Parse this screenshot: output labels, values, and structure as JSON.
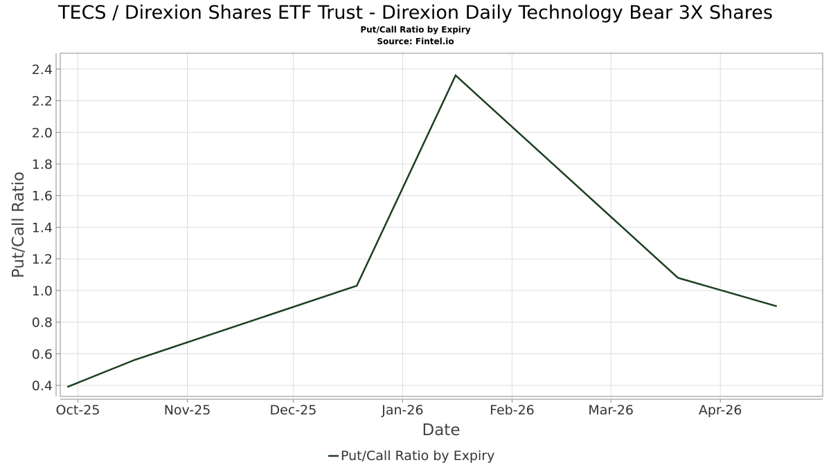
{
  "chart_data": {
    "type": "line",
    "title": "TECS / Direxion Shares ETF Trust - Direxion Daily Technology Bear 3X Shares",
    "subtitle": "Put/Call Ratio by Expiry",
    "source": "Source: Fintel.io",
    "xlabel": "Date",
    "ylabel": "Put/Call Ratio",
    "ylim": [
      0.33,
      2.5
    ],
    "xlim": [
      "2025-09-26",
      "2026-04-30"
    ],
    "yticks": [
      "0.4",
      "0.6",
      "0.8",
      "1.0",
      "1.2",
      "1.4",
      "1.6",
      "1.8",
      "2.0",
      "2.2",
      "2.4"
    ],
    "xticks": [
      {
        "label": "Oct-25",
        "date": "2025-10-01"
      },
      {
        "label": "Nov-25",
        "date": "2025-11-01"
      },
      {
        "label": "Dec-25",
        "date": "2025-12-01"
      },
      {
        "label": "Jan-26",
        "date": "2026-01-01"
      },
      {
        "label": "Feb-26",
        "date": "2026-02-01"
      },
      {
        "label": "Mar-26",
        "date": "2026-03-01"
      },
      {
        "label": "Apr-26",
        "date": "2026-04-01"
      }
    ],
    "grid": true,
    "legend_position": "bottom-center",
    "series": [
      {
        "name": "Put/Call Ratio by Expiry",
        "color": "#1a3d1f",
        "points": [
          {
            "x": "2025-09-28",
            "y": 0.39
          },
          {
            "x": "2025-10-17",
            "y": 0.56
          },
          {
            "x": "2025-12-19",
            "y": 1.03
          },
          {
            "x": "2026-01-16",
            "y": 2.36
          },
          {
            "x": "2026-03-20",
            "y": 1.08
          },
          {
            "x": "2026-04-17",
            "y": 0.9
          }
        ]
      }
    ]
  }
}
